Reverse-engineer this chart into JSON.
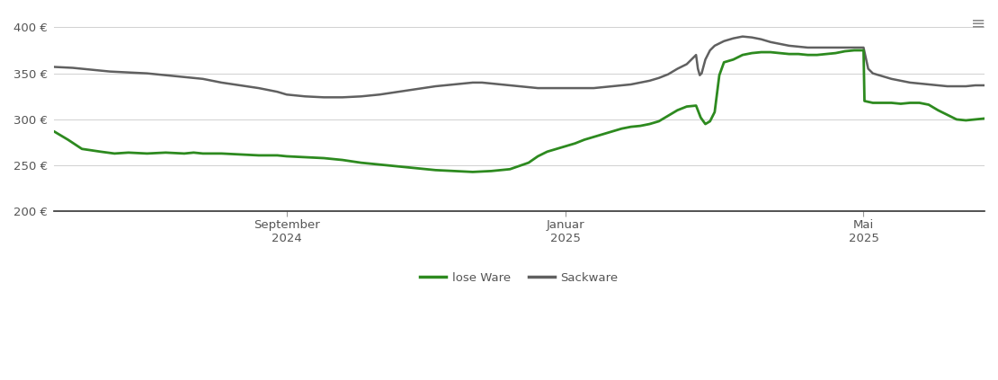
{
  "ylim": [
    200,
    415
  ],
  "yticks": [
    200,
    250,
    300,
    350,
    400
  ],
  "ytick_labels": [
    "200 €",
    "250 €",
    "300 €",
    "350 €",
    "400 €"
  ],
  "grid_color": "#d0d0d0",
  "bg_color": "#ffffff",
  "line_lose_color": "#2d8a1f",
  "line_sack_color": "#606060",
  "legend_lose": "lose Ware",
  "legend_sack": "Sackware",
  "xlim": [
    0,
    100
  ],
  "x_tick_positions": [
    25,
    55,
    87
  ],
  "x_tick_labels": [
    "September\n2024",
    "Januar\n2025",
    "Mai\n2025"
  ],
  "lose_ware": [
    [
      0,
      287
    ],
    [
      1.5,
      278
    ],
    [
      3,
      268
    ],
    [
      5,
      265
    ],
    [
      6.5,
      263
    ],
    [
      8,
      264
    ],
    [
      10,
      263
    ],
    [
      12,
      264
    ],
    [
      14,
      263
    ],
    [
      15,
      264
    ],
    [
      16,
      263
    ],
    [
      18,
      263
    ],
    [
      20,
      262
    ],
    [
      22,
      261
    ],
    [
      24,
      261
    ],
    [
      25,
      260
    ],
    [
      27,
      259
    ],
    [
      29,
      258
    ],
    [
      31,
      256
    ],
    [
      33,
      253
    ],
    [
      35,
      251
    ],
    [
      37,
      249
    ],
    [
      39,
      247
    ],
    [
      41,
      245
    ],
    [
      43,
      244
    ],
    [
      45,
      243
    ],
    [
      47,
      244
    ],
    [
      49,
      246
    ],
    [
      51,
      253
    ],
    [
      52,
      260
    ],
    [
      53,
      265
    ],
    [
      54,
      268
    ],
    [
      55,
      271
    ],
    [
      56,
      274
    ],
    [
      57,
      278
    ],
    [
      58,
      281
    ],
    [
      59,
      284
    ],
    [
      60,
      287
    ],
    [
      61,
      290
    ],
    [
      62,
      292
    ],
    [
      63,
      293
    ],
    [
      64,
      295
    ],
    [
      65,
      298
    ],
    [
      66,
      304
    ],
    [
      67,
      310
    ],
    [
      68,
      314
    ],
    [
      69,
      315
    ],
    [
      69.5,
      302
    ],
    [
      70,
      295
    ],
    [
      70.5,
      298
    ],
    [
      71,
      308
    ],
    [
      71.5,
      348
    ],
    [
      72,
      362
    ],
    [
      73,
      365
    ],
    [
      74,
      370
    ],
    [
      75,
      372
    ],
    [
      76,
      373
    ],
    [
      77,
      373
    ],
    [
      78,
      372
    ],
    [
      79,
      371
    ],
    [
      80,
      371
    ],
    [
      81,
      370
    ],
    [
      82,
      370
    ],
    [
      83,
      371
    ],
    [
      84,
      372
    ],
    [
      85,
      374
    ],
    [
      86,
      375
    ],
    [
      87,
      375
    ],
    [
      87.1,
      320
    ],
    [
      88,
      318
    ],
    [
      89,
      318
    ],
    [
      90,
      318
    ],
    [
      91,
      317
    ],
    [
      92,
      318
    ],
    [
      93,
      318
    ],
    [
      94,
      316
    ],
    [
      95,
      310
    ],
    [
      96,
      305
    ],
    [
      97,
      300
    ],
    [
      98,
      299
    ],
    [
      99,
      300
    ],
    [
      100,
      301
    ]
  ],
  "sackware": [
    [
      0,
      357
    ],
    [
      2,
      356
    ],
    [
      4,
      354
    ],
    [
      6,
      352
    ],
    [
      8,
      351
    ],
    [
      10,
      350
    ],
    [
      12,
      348
    ],
    [
      14,
      346
    ],
    [
      16,
      344
    ],
    [
      18,
      340
    ],
    [
      20,
      337
    ],
    [
      22,
      334
    ],
    [
      24,
      330
    ],
    [
      25,
      327
    ],
    [
      27,
      325
    ],
    [
      29,
      324
    ],
    [
      31,
      324
    ],
    [
      33,
      325
    ],
    [
      35,
      327
    ],
    [
      37,
      330
    ],
    [
      39,
      333
    ],
    [
      41,
      336
    ],
    [
      43,
      338
    ],
    [
      44,
      339
    ],
    [
      45,
      340
    ],
    [
      46,
      340
    ],
    [
      47,
      339
    ],
    [
      48,
      338
    ],
    [
      49,
      337
    ],
    [
      50,
      336
    ],
    [
      51,
      335
    ],
    [
      52,
      334
    ],
    [
      53,
      334
    ],
    [
      54,
      334
    ],
    [
      55,
      334
    ],
    [
      56,
      334
    ],
    [
      57,
      334
    ],
    [
      58,
      334
    ],
    [
      59,
      335
    ],
    [
      60,
      336
    ],
    [
      61,
      337
    ],
    [
      62,
      338
    ],
    [
      63,
      340
    ],
    [
      64,
      342
    ],
    [
      65,
      345
    ],
    [
      66,
      349
    ],
    [
      67,
      355
    ],
    [
      68,
      360
    ],
    [
      68.5,
      365
    ],
    [
      69,
      370
    ],
    [
      69.2,
      355
    ],
    [
      69.4,
      348
    ],
    [
      69.6,
      350
    ],
    [
      70,
      365
    ],
    [
      70.5,
      375
    ],
    [
      71,
      380
    ],
    [
      72,
      385
    ],
    [
      73,
      388
    ],
    [
      74,
      390
    ],
    [
      75,
      389
    ],
    [
      76,
      387
    ],
    [
      77,
      384
    ],
    [
      78,
      382
    ],
    [
      79,
      380
    ],
    [
      80,
      379
    ],
    [
      81,
      378
    ],
    [
      82,
      378
    ],
    [
      83,
      378
    ],
    [
      84,
      378
    ],
    [
      85,
      378
    ],
    [
      86,
      378
    ],
    [
      87,
      378
    ],
    [
      87.5,
      355
    ],
    [
      88,
      350
    ],
    [
      89,
      347
    ],
    [
      90,
      344
    ],
    [
      91,
      342
    ],
    [
      92,
      340
    ],
    [
      93,
      339
    ],
    [
      94,
      338
    ],
    [
      95,
      337
    ],
    [
      96,
      336
    ],
    [
      97,
      336
    ],
    [
      98,
      336
    ],
    [
      99,
      337
    ],
    [
      100,
      337
    ]
  ]
}
